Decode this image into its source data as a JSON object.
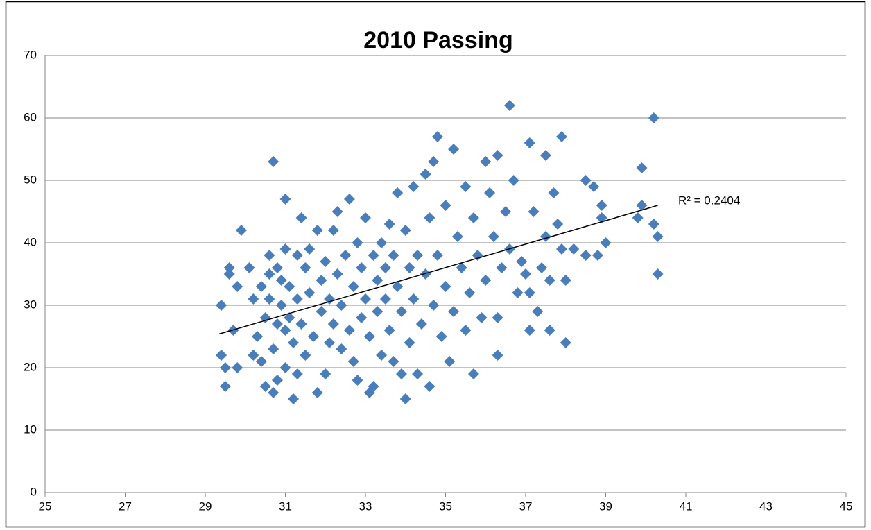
{
  "chart_data": {
    "type": "scatter",
    "title": "2010 Passing",
    "x": [
      29.4,
      29.4,
      29.5,
      29.5,
      29.6,
      29.6,
      29.7,
      29.8,
      29.8,
      29.9,
      30.1,
      30.2,
      30.2,
      30.3,
      30.4,
      30.4,
      30.5,
      30.5,
      30.6,
      30.6,
      30.6,
      30.7,
      30.7,
      30.7,
      30.8,
      30.8,
      30.8,
      30.9,
      30.9,
      31.0,
      31.0,
      31.0,
      31.0,
      31.1,
      31.1,
      31.2,
      31.2,
      31.3,
      31.3,
      31.3,
      31.4,
      31.4,
      31.5,
      31.5,
      31.6,
      31.6,
      31.7,
      31.8,
      31.8,
      31.9,
      31.9,
      32.0,
      32.0,
      32.1,
      32.1,
      32.2,
      32.2,
      32.3,
      32.3,
      32.4,
      32.4,
      32.5,
      32.6,
      32.6,
      32.7,
      32.7,
      32.8,
      32.8,
      32.9,
      32.9,
      33.0,
      33.0,
      33.1,
      33.1,
      33.2,
      33.2,
      33.3,
      33.3,
      33.4,
      33.4,
      33.5,
      33.5,
      33.6,
      33.6,
      33.7,
      33.7,
      33.8,
      33.8,
      33.9,
      33.9,
      34.0,
      34.0,
      34.1,
      34.1,
      34.2,
      34.2,
      34.3,
      34.3,
      34.4,
      34.5,
      34.5,
      34.6,
      34.6,
      34.7,
      34.7,
      34.8,
      34.8,
      34.9,
      35.0,
      35.0,
      35.1,
      35.2,
      35.2,
      35.3,
      35.4,
      35.5,
      35.5,
      35.6,
      35.7,
      35.7,
      35.8,
      35.9,
      36.0,
      36.0,
      36.1,
      36.2,
      36.3,
      36.3,
      36.3,
      36.4,
      36.5,
      36.6,
      36.6,
      36.7,
      36.8,
      36.9,
      37.0,
      37.1,
      37.1,
      37.1,
      37.2,
      37.3,
      37.4,
      37.5,
      37.5,
      37.6,
      37.6,
      37.7,
      37.8,
      37.9,
      37.9,
      38.0,
      38.0,
      38.2,
      38.5,
      38.5,
      38.7,
      38.8,
      38.9,
      38.9,
      39.0,
      39.8,
      39.9,
      39.9,
      40.2,
      40.2,
      40.3,
      40.3
    ],
    "values": [
      30,
      22,
      20,
      17,
      36,
      35,
      26,
      33,
      20,
      42,
      36,
      31,
      22,
      25,
      33,
      21,
      28,
      17,
      38,
      35,
      31,
      53,
      23,
      16,
      36,
      27,
      18,
      34,
      30,
      39,
      26,
      20,
      47,
      33,
      28,
      15,
      24,
      38,
      31,
      19,
      44,
      27,
      36,
      22,
      39,
      32,
      25,
      16,
      42,
      34,
      29,
      19,
      37,
      31,
      24,
      42,
      27,
      45,
      35,
      30,
      23,
      38,
      47,
      26,
      33,
      21,
      40,
      18,
      36,
      28,
      44,
      31,
      16,
      25,
      38,
      17,
      34,
      29,
      40,
      22,
      36,
      31,
      43,
      26,
      38,
      21,
      48,
      33,
      29,
      19,
      15,
      42,
      36,
      24,
      49,
      31,
      38,
      19,
      27,
      51,
      35,
      17,
      44,
      30,
      53,
      57,
      38,
      25,
      46,
      33,
      21,
      55,
      29,
      41,
      36,
      49,
      26,
      32,
      19,
      44,
      38,
      28,
      53,
      34,
      48,
      41,
      54,
      22,
      28,
      36,
      45,
      62,
      39,
      50,
      32,
      37,
      35,
      56,
      26,
      32,
      45,
      29,
      36,
      54,
      41,
      26,
      34,
      48,
      43,
      57,
      39,
      24,
      34,
      39,
      50,
      38,
      49,
      38,
      46,
      44,
      40,
      44,
      46,
      52,
      60,
      43,
      41,
      35
    ],
    "color": "#4a7ebb",
    "trendline": {
      "x": [
        29.35,
        40.3
      ],
      "y": [
        25.4,
        46
      ],
      "label": "R² = 0.2404"
    },
    "xlim": [
      25,
      45
    ],
    "xticks": [
      25,
      27,
      29,
      31,
      33,
      35,
      37,
      39,
      41,
      43,
      45
    ],
    "ylim": [
      0,
      70
    ],
    "yticks": [
      0,
      10,
      20,
      30,
      40,
      50,
      60,
      70
    ],
    "grid": true
  }
}
